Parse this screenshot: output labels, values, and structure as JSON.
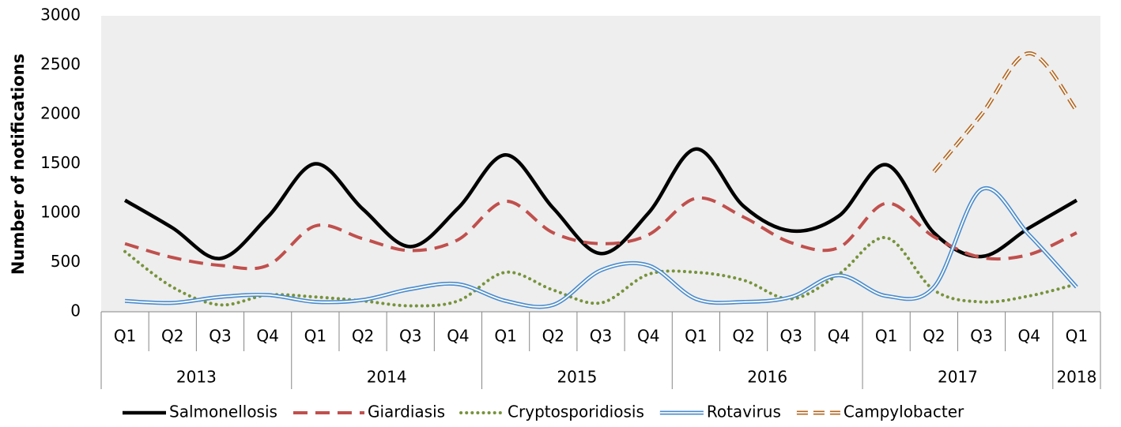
{
  "chart_data": {
    "type": "line",
    "smooth": true,
    "y_label": "Number of notifications",
    "categories": [
      "Q1",
      "Q2",
      "Q3",
      "Q4",
      "Q1",
      "Q2",
      "Q3",
      "Q4",
      "Q1",
      "Q2",
      "Q3",
      "Q4",
      "Q1",
      "Q2",
      "Q3",
      "Q4",
      "Q1",
      "Q2",
      "Q3",
      "Q4",
      "Q1"
    ],
    "groups": [
      "2013",
      "2014",
      "2015",
      "2016",
      "2017",
      "2018"
    ],
    "ylim": [
      0,
      3000
    ],
    "yticks": [
      0,
      500,
      1000,
      1500,
      2000,
      2500,
      3000
    ],
    "plot_background": "#eeeeee",
    "grid": false,
    "legend": "bottom",
    "series": [
      {
        "name": "Salmonellosis",
        "color": "#000000",
        "style": "solid",
        "values": [
          1130,
          850,
          540,
          960,
          1500,
          1040,
          660,
          1050,
          1590,
          1050,
          590,
          1000,
          1650,
          1070,
          820,
          970,
          1490,
          800,
          560,
          850,
          1130
        ]
      },
      {
        "name": "Giardiasis",
        "color": "#c0504d",
        "style": "dashed",
        "values": [
          690,
          550,
          470,
          470,
          870,
          740,
          620,
          730,
          1120,
          800,
          690,
          780,
          1150,
          960,
          700,
          650,
          1100,
          760,
          550,
          580,
          800
        ]
      },
      {
        "name": "Cryptosporidiosis",
        "color": "#77933c",
        "style": "dotted",
        "values": [
          610,
          250,
          70,
          170,
          150,
          110,
          60,
          110,
          400,
          220,
          90,
          380,
          400,
          320,
          130,
          380,
          750,
          220,
          100,
          160,
          280
        ]
      },
      {
        "name": "Rotavirus",
        "color": "#4a8ccc",
        "style": "double",
        "values": [
          110,
          90,
          150,
          170,
          100,
          120,
          230,
          280,
          110,
          70,
          420,
          470,
          130,
          100,
          150,
          370,
          160,
          250,
          1240,
          780,
          250
        ]
      },
      {
        "name": "Campylobacter",
        "color": "#b4661e",
        "style": "double-dashed",
        "values": [
          null,
          null,
          null,
          null,
          null,
          null,
          null,
          null,
          null,
          null,
          null,
          null,
          null,
          null,
          null,
          null,
          null,
          1420,
          2000,
          2620,
          2040
        ]
      }
    ]
  }
}
